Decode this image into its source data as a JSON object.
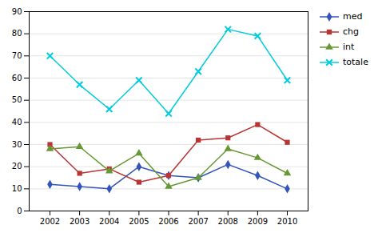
{
  "chart_data": {
    "type": "line",
    "x": [
      2002,
      2003,
      2004,
      2005,
      2006,
      2007,
      2008,
      2009,
      2010
    ],
    "series": [
      {
        "name": "med",
        "color": "#3355bb",
        "marker": "diamond",
        "values": [
          12,
          11,
          10,
          20,
          16,
          15,
          21,
          16,
          10
        ]
      },
      {
        "name": "chg",
        "color": "#bb3333",
        "marker": "square",
        "values": [
          30,
          17,
          19,
          13,
          16,
          32,
          33,
          39,
          31
        ]
      },
      {
        "name": "int",
        "color": "#669933",
        "marker": "triangle",
        "values": [
          28,
          29,
          18,
          26,
          11,
          15,
          28,
          24,
          17
        ]
      },
      {
        "name": "totale",
        "color": "#00ccdd",
        "marker": "x",
        "values": [
          70,
          57,
          46,
          59,
          44,
          63,
          82,
          79,
          59
        ]
      }
    ],
    "xlim": [
      2001.3,
      2010.7
    ],
    "xticks": [
      2002,
      2003,
      2004,
      2005,
      2006,
      2007,
      2008,
      2009,
      2010
    ],
    "ylim": [
      0,
      90
    ],
    "yticks": [
      0,
      10,
      20,
      30,
      40,
      50,
      60,
      70,
      80,
      90
    ],
    "grid": true,
    "legend": "right"
  }
}
